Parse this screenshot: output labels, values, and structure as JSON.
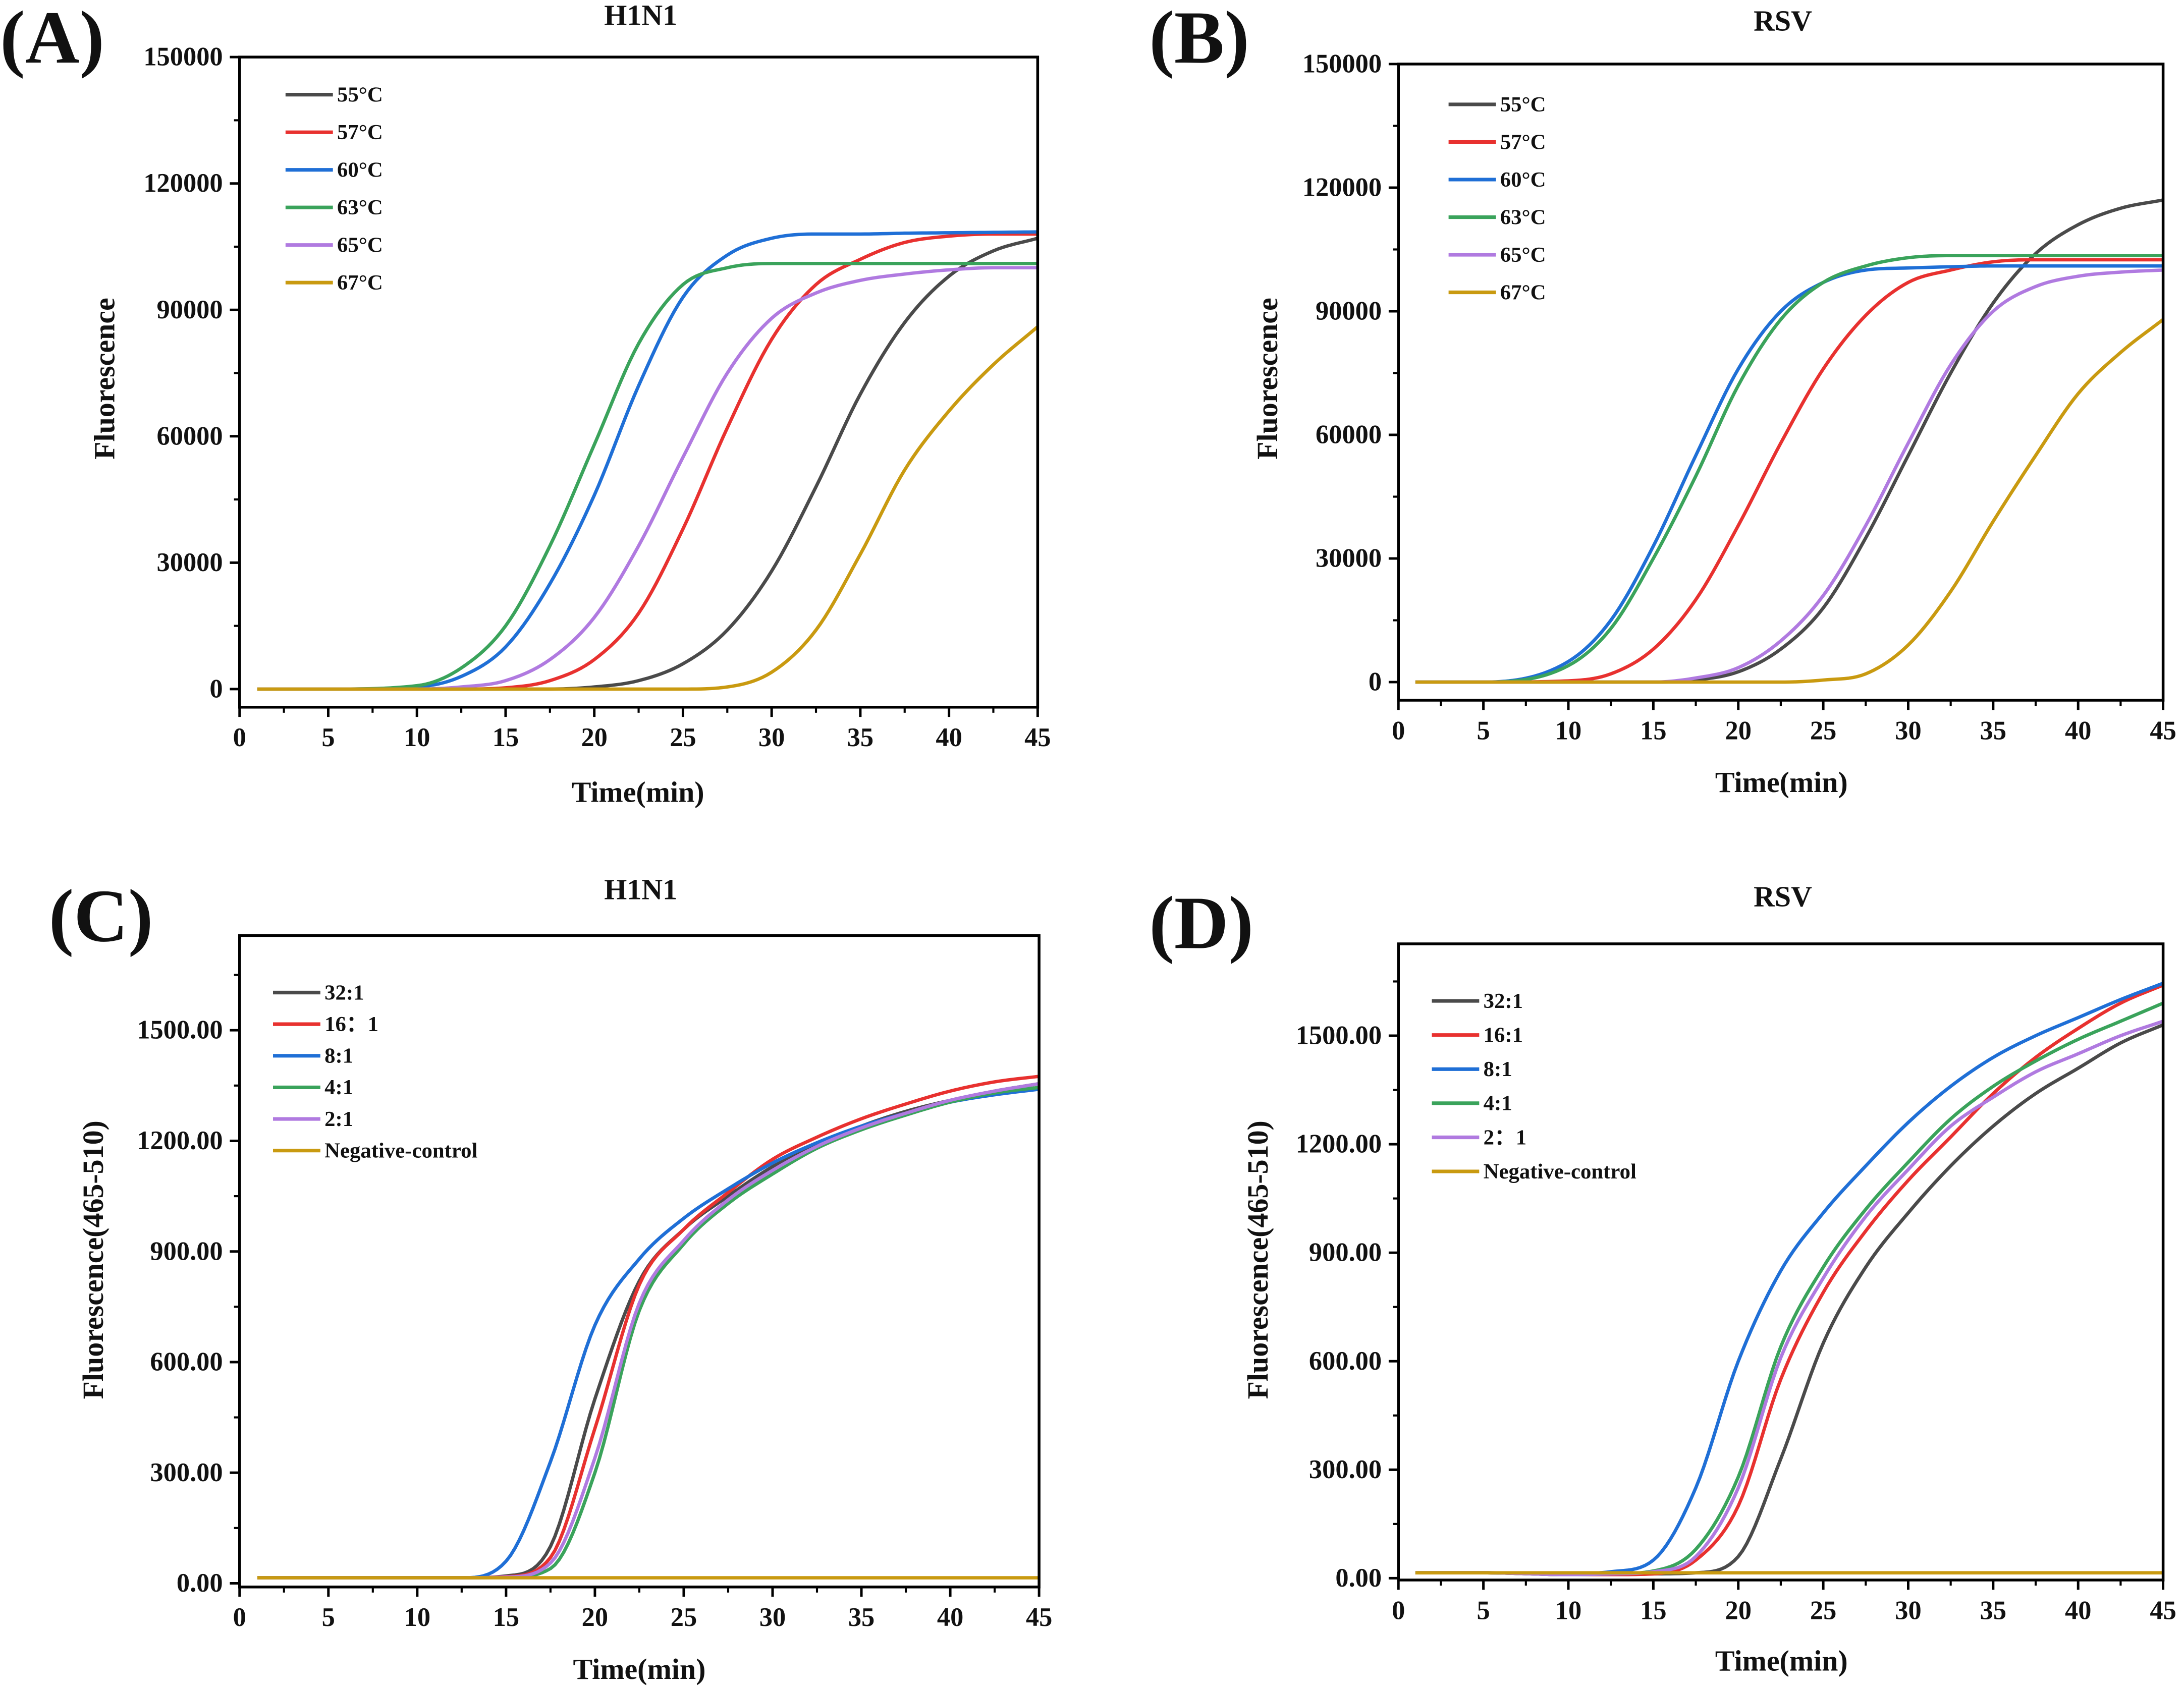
{
  "chart_data": [
    {
      "id": "A",
      "type": "line",
      "panel_label": "(A)",
      "title": "H1N1",
      "xlabel": "Time(min)",
      "ylabel": "Fluorescence",
      "xlim": [
        0,
        45
      ],
      "ylim": [
        -4300,
        150000
      ],
      "xticks": [
        "0",
        "5",
        "10",
        "15",
        "20",
        "25",
        "30",
        "35",
        "40",
        "45"
      ],
      "yticks": [
        "0",
        "30000",
        "60000",
        "90000",
        "120000",
        "150000"
      ],
      "ytick_values": [
        0,
        30000,
        60000,
        90000,
        120000,
        150000
      ],
      "legend": "top-left",
      "x": [
        1,
        5,
        10,
        12.5,
        15,
        17.5,
        20,
        22.5,
        25,
        27.5,
        30,
        32.5,
        35,
        37.5,
        40,
        42.5,
        45
      ],
      "series": [
        {
          "name": "55°C",
          "color": "#4a4a4a",
          "values": [
            0,
            0,
            0,
            0,
            0,
            0,
            500,
            2000,
            6000,
            14000,
            28000,
            48000,
            70000,
            87000,
            98000,
            104000,
            107000
          ]
        },
        {
          "name": "57°C",
          "color": "#e8312f",
          "values": [
            0,
            0,
            0,
            0,
            300,
            2000,
            7000,
            18000,
            38000,
            62000,
            83000,
            96000,
            102000,
            106000,
            107500,
            108000,
            108000
          ]
        },
        {
          "name": "60°C",
          "color": "#1f6fd6",
          "values": [
            0,
            0,
            500,
            3000,
            10000,
            25000,
            46000,
            72000,
            93000,
            103000,
            107000,
            108000,
            108000,
            108200,
            108300,
            108400,
            108500
          ]
        },
        {
          "name": "63°C",
          "color": "#3aa35b",
          "values": [
            0,
            0,
            800,
            5000,
            15000,
            34000,
            58000,
            82000,
            96000,
            100000,
            101000,
            101000,
            101000,
            101000,
            101000,
            101000,
            101000
          ]
        },
        {
          "name": "65°C",
          "color": "#b07ae0",
          "values": [
            0,
            0,
            0,
            500,
            2000,
            7000,
            17000,
            34000,
            55000,
            75000,
            88000,
            94000,
            97000,
            98500,
            99500,
            100000,
            100000
          ]
        },
        {
          "name": "67°C",
          "color": "#c99a10",
          "values": [
            0,
            0,
            0,
            0,
            0,
            0,
            0,
            0,
            0,
            500,
            4000,
            14000,
            32000,
            52000,
            66000,
            77000,
            86000
          ]
        }
      ]
    },
    {
      "id": "B",
      "type": "line",
      "panel_label": "(B)",
      "title": "RSV",
      "xlabel": "Time(min)",
      "ylabel": "Fluorescence",
      "xlim": [
        0,
        45
      ],
      "ylim": [
        -4400,
        150000
      ],
      "xticks": [
        "0",
        "5",
        "10",
        "15",
        "20",
        "25",
        "30",
        "35",
        "40",
        "45"
      ],
      "yticks": [
        "0",
        "30000",
        "60000",
        "90000",
        "120000",
        "150000"
      ],
      "ytick_values": [
        0,
        30000,
        60000,
        90000,
        120000,
        150000
      ],
      "legend": "top-left",
      "x": [
        1,
        5,
        10,
        12.5,
        15,
        17.5,
        20,
        22.5,
        25,
        27.5,
        30,
        32.5,
        35,
        37.5,
        40,
        42.5,
        45
      ],
      "series": [
        {
          "name": "55°C",
          "color": "#4a4a4a",
          "values": [
            0,
            0,
            0,
            0,
            0,
            500,
            2500,
            8000,
            18000,
            35000,
            55000,
            75000,
            92000,
            104000,
            111000,
            115000,
            117000
          ]
        },
        {
          "name": "57°C",
          "color": "#e8312f",
          "values": [
            0,
            0,
            300,
            2000,
            8000,
            20000,
            38000,
            58000,
            76000,
            89000,
            97000,
            100000,
            102000,
            102500,
            102500,
            102500,
            102500
          ]
        },
        {
          "name": "60°C",
          "color": "#1f6fd6",
          "values": [
            0,
            0,
            5000,
            15000,
            33000,
            55000,
            76000,
            90000,
            97000,
            100000,
            100500,
            100800,
            101000,
            101000,
            101000,
            101000,
            101000
          ]
        },
        {
          "name": "63°C",
          "color": "#3aa35b",
          "values": [
            0,
            0,
            4000,
            13000,
            30000,
            50000,
            72000,
            88000,
            97000,
            101000,
            103000,
            103500,
            103500,
            103500,
            103500,
            103500,
            103500
          ]
        },
        {
          "name": "65°C",
          "color": "#b07ae0",
          "values": [
            0,
            0,
            0,
            0,
            0,
            1000,
            3500,
            10000,
            21000,
            38000,
            58000,
            77000,
            90000,
            96000,
            98500,
            99500,
            100000
          ]
        },
        {
          "name": "67°C",
          "color": "#c99a10",
          "values": [
            0,
            0,
            0,
            0,
            0,
            0,
            0,
            0,
            500,
            2000,
            9000,
            22000,
            39000,
            55000,
            70000,
            80000,
            88000
          ]
        }
      ]
    },
    {
      "id": "C",
      "type": "line",
      "panel_label": "(C)",
      "title": "H1N1",
      "xlabel": "Time(min)",
      "ylabel": "Fluorescence(465-510)",
      "xlim": [
        0,
        45
      ],
      "ylim": [
        -10,
        1757
      ],
      "xticks": [
        "0",
        "5",
        "10",
        "15",
        "20",
        "25",
        "30",
        "35",
        "40",
        "45"
      ],
      "yticks": [
        "0.00",
        "300.00",
        "600.00",
        "900.00",
        "1200.00",
        "1500.00"
      ],
      "ytick_values": [
        0,
        300,
        600,
        900,
        1200,
        1500
      ],
      "legend": "top-left",
      "x": [
        1,
        5,
        10,
        12.5,
        15,
        17.5,
        20,
        22.5,
        25,
        27.5,
        30,
        32.5,
        35,
        37.5,
        40,
        42.5,
        45
      ],
      "series": [
        {
          "name": "32:1",
          "color": "#4a4a4a",
          "values": [
            15,
            15,
            15,
            15,
            20,
            100,
            500,
            820,
            960,
            1050,
            1130,
            1190,
            1240,
            1280,
            1310,
            1335,
            1355
          ]
        },
        {
          "name": "16：1",
          "color": "#e8312f",
          "values": [
            15,
            15,
            15,
            15,
            18,
            70,
            420,
            810,
            960,
            1060,
            1150,
            1210,
            1260,
            1300,
            1335,
            1360,
            1375
          ]
        },
        {
          "name": "8:1",
          "color": "#1f6fd6",
          "values": [
            15,
            15,
            15,
            15,
            60,
            330,
            700,
            880,
            990,
            1070,
            1140,
            1195,
            1240,
            1275,
            1305,
            1325,
            1340
          ]
        },
        {
          "name": "4:1",
          "color": "#3aa35b",
          "values": [
            15,
            15,
            15,
            15,
            16,
            40,
            300,
            740,
            920,
            1030,
            1110,
            1180,
            1230,
            1270,
            1305,
            1330,
            1345
          ]
        },
        {
          "name": "2:1",
          "color": "#b07ae0",
          "values": [
            15,
            15,
            15,
            15,
            17,
            55,
            340,
            760,
            930,
            1040,
            1120,
            1185,
            1235,
            1275,
            1310,
            1335,
            1355
          ]
        },
        {
          "name": "Negative-control",
          "color": "#c99a10",
          "values": [
            15,
            15,
            15,
            15,
            15,
            15,
            15,
            15,
            15,
            15,
            15,
            15,
            15,
            15,
            15,
            15,
            15
          ]
        }
      ]
    },
    {
      "id": "D",
      "type": "line",
      "panel_label": "(D)",
      "title": "RSV",
      "xlabel": "Time(min)",
      "ylabel": "Fluorescence(465-510)",
      "xlim": [
        0,
        45
      ],
      "ylim": [
        -5,
        1754
      ],
      "xticks": [
        "0",
        "5",
        "10",
        "15",
        "20",
        "25",
        "30",
        "35",
        "40",
        "45"
      ],
      "yticks": [
        "0.00",
        "300.00",
        "600.00",
        "900.00",
        "1200.00",
        "1500.00"
      ],
      "ytick_values": [
        0,
        300,
        600,
        900,
        1200,
        1500
      ],
      "legend": "top-left",
      "x": [
        1,
        5,
        10,
        12.5,
        15,
        17.5,
        20,
        22.5,
        25,
        27.5,
        30,
        32.5,
        35,
        37.5,
        40,
        42.5,
        45
      ],
      "series": [
        {
          "name": "32:1",
          "color": "#4a4a4a",
          "values": [
            15,
            15,
            10,
            10,
            12,
            15,
            60,
            330,
            650,
            860,
            1010,
            1140,
            1250,
            1340,
            1410,
            1480,
            1530
          ]
        },
        {
          "name": "16:1",
          "color": "#e8312f",
          "values": [
            15,
            15,
            10,
            10,
            12,
            50,
            200,
            550,
            790,
            960,
            1100,
            1220,
            1340,
            1440,
            1520,
            1590,
            1640
          ]
        },
        {
          "name": "8:1",
          "color": "#1f6fd6",
          "values": [
            15,
            15,
            12,
            18,
            50,
            250,
            600,
            850,
            1010,
            1140,
            1260,
            1360,
            1440,
            1500,
            1550,
            1600,
            1645
          ]
        },
        {
          "name": "4:1",
          "color": "#3aa35b",
          "values": [
            15,
            15,
            10,
            12,
            20,
            80,
            280,
            640,
            860,
            1020,
            1150,
            1270,
            1360,
            1430,
            1490,
            1540,
            1590
          ]
        },
        {
          "name": "2：1",
          "color": "#b07ae0",
          "values": [
            15,
            15,
            10,
            12,
            18,
            60,
            250,
            610,
            830,
            1000,
            1130,
            1250,
            1330,
            1400,
            1450,
            1500,
            1540
          ]
        },
        {
          "name": "Negative-control",
          "color": "#c99a10",
          "values": [
            15,
            15,
            15,
            15,
            15,
            15,
            15,
            15,
            15,
            15,
            15,
            15,
            15,
            15,
            15,
            15,
            15
          ]
        }
      ]
    }
  ]
}
